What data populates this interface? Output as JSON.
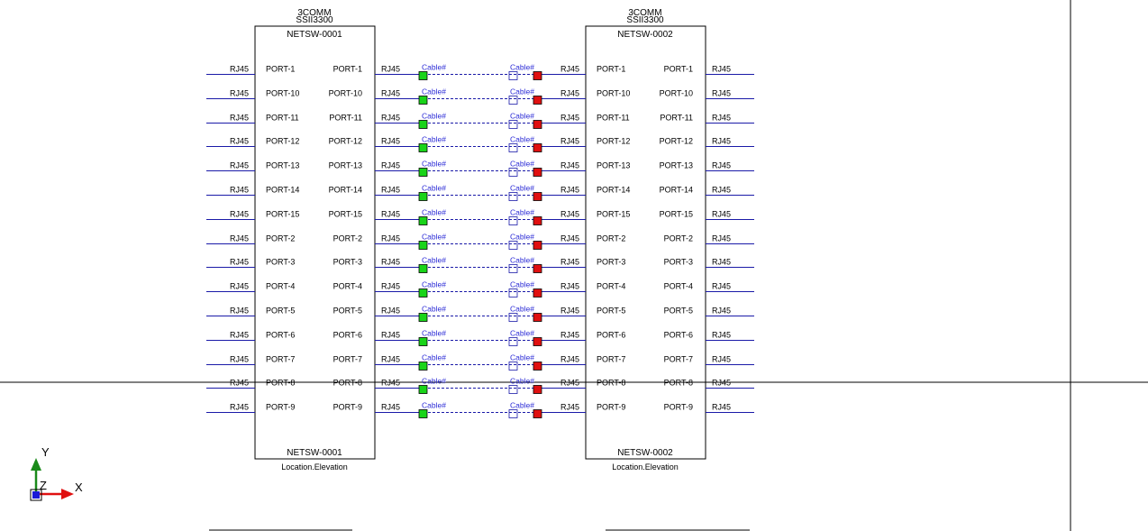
{
  "switches": [
    {
      "manufacturer": "3COMM",
      "model": "SSII3300",
      "tag": "NETSW-0001",
      "footer_tag": "NETSW-0001",
      "location": "Location.Elevation"
    },
    {
      "manufacturer": "3COMM",
      "model": "SSII3300",
      "tag": "NETSW-0002",
      "footer_tag": "NETSW-0002",
      "location": "Location.Elevation"
    }
  ],
  "ports": [
    "PORT-1",
    "PORT-10",
    "PORT-11",
    "PORT-12",
    "PORT-13",
    "PORT-14",
    "PORT-15",
    "PORT-2",
    "PORT-3",
    "PORT-4",
    "PORT-5",
    "PORT-6",
    "PORT-7",
    "PORT-8",
    "PORT-9"
  ],
  "connector_type": "RJ45",
  "cable_label": "Cable#",
  "ucs_icon": {
    "y_label": "Y",
    "x_label": "X",
    "z_label": "Z"
  },
  "colors": {
    "wire": "#1a1aa8",
    "cable_label": "#2b2bd6",
    "terminal_start": "#19d419",
    "terminal_end": "#e01010",
    "crosshair": "#000000",
    "ucs_y": "#1a8a1a",
    "ucs_x": "#e01010",
    "ucs_origin": "#1a1ad6"
  }
}
